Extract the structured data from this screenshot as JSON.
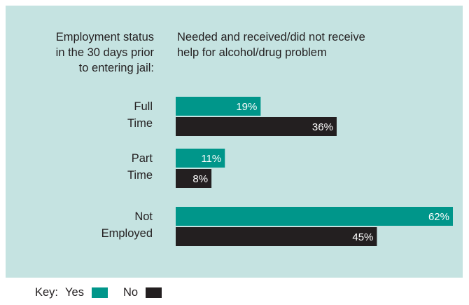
{
  "colors": {
    "yes": "#00968a",
    "no": "#231f20",
    "panel": "#c5e3e1",
    "label_on_bar": "#ffffff"
  },
  "header": {
    "left_lines": [
      "Employment status",
      "in the 30 days prior",
      "to entering jail:"
    ],
    "right_lines": [
      "Needed and received/did not receive",
      "help for alcohol/drug problem"
    ]
  },
  "key": {
    "prefix": "Key:",
    "yes": "Yes",
    "no": "No"
  },
  "chart_data": {
    "type": "bar",
    "orientation": "horizontal",
    "categories": [
      [
        "Full",
        "Time"
      ],
      [
        "Part",
        "Time"
      ],
      [
        "Not",
        "Employed"
      ]
    ],
    "series": [
      {
        "name": "Yes",
        "values": [
          19,
          11,
          62
        ],
        "labels": [
          "19%",
          "11%",
          "62%"
        ]
      },
      {
        "name": "No",
        "values": [
          36,
          8,
          45
        ],
        "labels": [
          "36%",
          "8%",
          "45%"
        ]
      }
    ],
    "xlim": [
      0,
      62
    ],
    "grid": false,
    "legend": "bottom-left"
  }
}
